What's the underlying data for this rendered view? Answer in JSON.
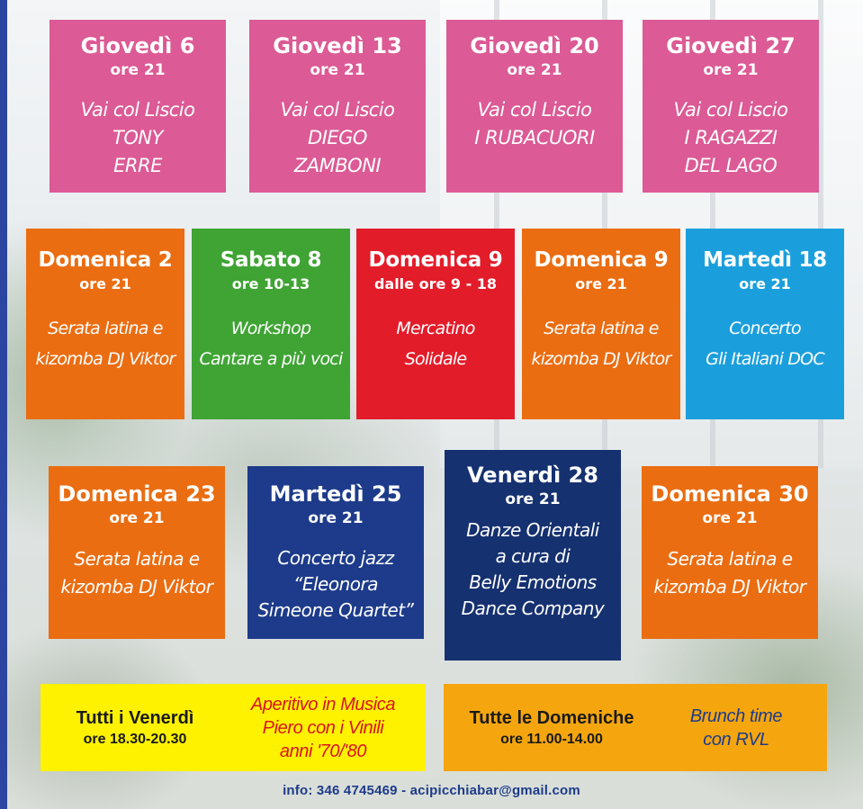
{
  "row1": [
    {
      "day": "Giovedì 6",
      "time": "ore 21",
      "desc": "Vai col Liscio\nTONY\nERRE",
      "color": "#dc5a95"
    },
    {
      "day": "Giovedì 13",
      "time": "ore 21",
      "desc": "Vai col Liscio\nDIEGO\nZAMBONI",
      "color": "#dc5a95"
    },
    {
      "day": "Giovedì 20",
      "time": "ore 21",
      "desc": "Vai col Liscio\nI RUBACUORI",
      "color": "#dc5a95"
    },
    {
      "day": "Giovedì 27",
      "time": "ore 21",
      "desc": "Vai col Liscio\nI RAGAZZI\nDEL LAGO",
      "color": "#dc5a95"
    }
  ],
  "row2": [
    {
      "day": "Domenica 2",
      "time": "ore 21",
      "desc": "Serata latina e\nkizomba DJ Viktor",
      "color": "#ea6d12"
    },
    {
      "day": "Sabato 8",
      "time": "ore 10-13",
      "desc": "Workshop\nCantare a più voci",
      "color": "#3fa434"
    },
    {
      "day": "Domenica 9",
      "time": "dalle ore 9 - 18",
      "desc": "Mercatino\nSolidale",
      "color": "#e31c2a"
    },
    {
      "day": "Domenica 9",
      "time": "ore 21",
      "desc": "Serata latina e\nkizomba DJ Viktor",
      "color": "#ea6d12"
    },
    {
      "day": "Martedì 18",
      "time": "ore 21",
      "desc": "Concerto\nGli Italiani DOC",
      "color": "#1b9fdc"
    }
  ],
  "row3": [
    {
      "day": "Domenica 23",
      "time": "ore 21",
      "desc": "Serata latina e\nkizomba DJ Viktor",
      "color": "#ea6d12"
    },
    {
      "day": "Martedì 25",
      "time": "ore 21",
      "desc": "Concerto jazz\n“Eleonora\nSimeone Quartet”",
      "color": "#1d3b8a"
    },
    {
      "day": "Venerdì 28",
      "time": "ore 21",
      "desc": "Danze Orientali\na cura di\nBelly Emotions\nDance Company",
      "color": "#163170"
    },
    {
      "day": "Domenica 30",
      "time": "ore 21",
      "desc": "Serata latina e\nkizomba DJ Viktor",
      "color": "#ea6d12"
    }
  ],
  "weekly": [
    {
      "title": "Tutti i Venerdì",
      "time": "ore 18.30-20.30",
      "desc": "Aperitivo in Musica\nPiero con i Vinili\nanni '70/'80",
      "bg": "#fff200",
      "desc_color": "#d9141e"
    },
    {
      "title": "Tutte le Domeniche",
      "time": "ore 11.00-14.00",
      "desc": "Brunch time\ncon RVL",
      "bg": "#f5a60f",
      "desc_color": "#1d3b8a"
    }
  ],
  "footer": {
    "info": "info: 346 4745469  -  acipicchiabar@gmail.com"
  }
}
